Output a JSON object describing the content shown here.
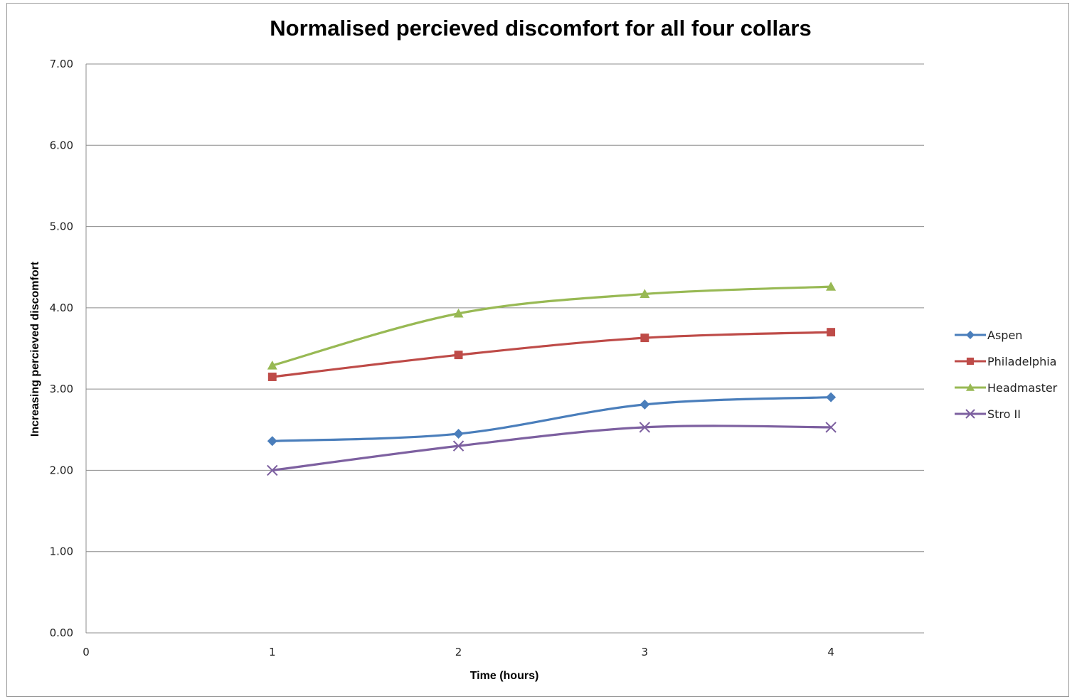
{
  "chart_data": {
    "type": "line",
    "title": "Normalised percieved discomfort for all four collars",
    "xlabel": "Time (hours)",
    "ylabel": "Increasing percieved discomfort",
    "xlim": [
      0,
      4.5
    ],
    "ylim": [
      0,
      7
    ],
    "x_ticks": [
      "0",
      "1",
      "2",
      "3",
      "4"
    ],
    "y_ticks": [
      "0.00",
      "1.00",
      "2.00",
      "3.00",
      "4.00",
      "5.00",
      "6.00",
      "7.00"
    ],
    "x": [
      1,
      2,
      3,
      4
    ],
    "grid": "horizontal",
    "legend_position": "right",
    "series": [
      {
        "name": "Aspen",
        "values": [
          2.36,
          2.45,
          2.81,
          2.9
        ],
        "color": "#4a7ebb",
        "marker": "diamond"
      },
      {
        "name": "Philadelphia",
        "values": [
          3.15,
          3.42,
          3.63,
          3.7
        ],
        "color": "#be4b48",
        "marker": "square"
      },
      {
        "name": "Headmaster",
        "values": [
          3.29,
          3.93,
          4.17,
          4.26
        ],
        "color": "#98b954",
        "marker": "triangle"
      },
      {
        "name": "Stro II",
        "values": [
          2.0,
          2.3,
          2.53,
          2.53
        ],
        "color": "#7d60a0",
        "marker": "x"
      }
    ]
  }
}
